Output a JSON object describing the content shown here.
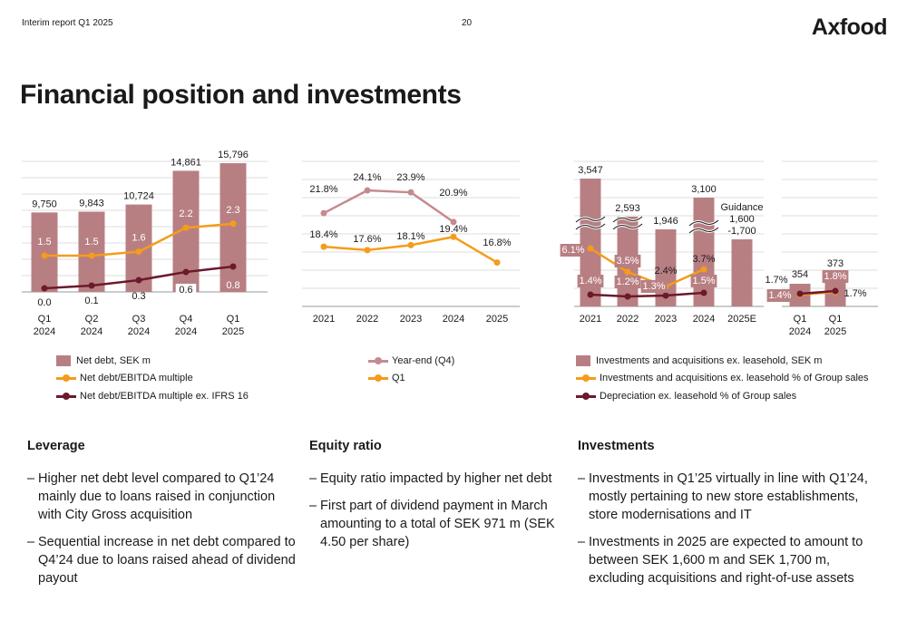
{
  "header": {
    "report": "Interim report Q1 2025",
    "page": "20",
    "logo": "Axfood"
  },
  "title": "Financial position and investments",
  "colors": {
    "bar": "#b87f83",
    "orange": "#f59c1a",
    "darkred": "#6b1a2b",
    "pink": "#c58a8f",
    "grid": "#dddddd"
  },
  "chart_data": [
    {
      "type": "bar",
      "categories": [
        [
          "Q1",
          "2024"
        ],
        [
          "Q2",
          "2024"
        ],
        [
          "Q3",
          "2024"
        ],
        [
          "Q4",
          "2024"
        ],
        [
          "Q1",
          "2025"
        ]
      ],
      "series": [
        {
          "name": "Net debt, SEK m",
          "values": [
            9750,
            9843,
            10724,
            14861,
            15796
          ],
          "labels": [
            "9,750",
            "9,843",
            "10,724",
            "14,861",
            "15,796"
          ]
        },
        {
          "name": "Net debt/EBITDA multiple",
          "values": [
            1.5,
            1.5,
            1.6,
            2.2,
            2.3
          ],
          "labels": [
            "1.5",
            "1.5",
            "1.6",
            "2.2",
            "2.3"
          ]
        },
        {
          "name": "Net debt/EBITDA multiple ex. IFRS 16",
          "values": [
            0.0,
            0.1,
            0.3,
            0.6,
            0.8
          ],
          "labels": [
            "0.0",
            "0.1",
            "0.3",
            "0.6",
            "0.8"
          ]
        }
      ],
      "legend_position": "bottom"
    },
    {
      "type": "line",
      "categories": [
        "2021",
        "2022",
        "2023",
        "2024",
        "2025"
      ],
      "series": [
        {
          "name": "Year-end (Q4)",
          "values": [
            21.8,
            24.1,
            23.9,
            20.9,
            null
          ],
          "labels": [
            "21.8%",
            "24.1%",
            "23.9%",
            "20.9%",
            ""
          ]
        },
        {
          "name": "Q1",
          "values": [
            18.4,
            17.6,
            18.1,
            19.4,
            16.8
          ],
          "labels": [
            "18.4%",
            "17.6%",
            "18.1%",
            "19.4%",
            "16.8%"
          ]
        }
      ],
      "legend_position": "bottom"
    },
    {
      "type": "bar",
      "categories": [
        [
          "2021"
        ],
        [
          "2022"
        ],
        [
          "2023"
        ],
        [
          "2024"
        ],
        [
          "2025E"
        ]
      ],
      "series": [
        {
          "name": "Investments and acquisitions ex. leasehold, SEK m",
          "values": [
            3547,
            2593,
            1946,
            3100,
            1650
          ],
          "labels": [
            "3,547",
            "2,593",
            "1,946",
            "3,100",
            ""
          ]
        },
        {
          "name": "Investments and acquisitions ex. leasehold % of Group sales",
          "values": [
            6.1,
            3.5,
            1.3,
            3.7,
            null
          ],
          "labels": [
            "6.1%",
            "3.5%",
            "1.3%",
            "3.7%",
            ""
          ]
        },
        {
          "name": "Depreciation ex. leasehold % of Group sales",
          "values": [
            1.4,
            1.2,
            2.4,
            1.5,
            null
          ],
          "labels": [
            "1.4%",
            "1.2%",
            "2.4%",
            "1.5%",
            ""
          ]
        }
      ],
      "guidance_label": [
        "Guidance",
        "1,600",
        "-1,700"
      ],
      "axis_break": true,
      "legend_position": "bottom"
    },
    {
      "type": "bar",
      "categories": [
        [
          "Q1",
          "2024"
        ],
        [
          "Q1",
          "2025"
        ]
      ],
      "series": [
        {
          "name": "Investments and acquisitions ex. leasehold, SEK m",
          "values": [
            354,
            373
          ],
          "labels": [
            "354",
            "373"
          ]
        },
        {
          "name": "Investments and acquisitions ex. leasehold % of Group sales",
          "values": [
            1.4,
            1.8
          ],
          "labels": [
            "1.4%",
            "1.8%"
          ]
        },
        {
          "name": "Depreciation ex. leasehold % of Group sales",
          "values": [
            1.7,
            1.7
          ],
          "labels": [
            "1.7%",
            "1.7%"
          ]
        }
      ]
    }
  ],
  "legends": {
    "leverage": [
      "Net debt, SEK m",
      "Net debt/EBITDA multiple",
      "Net debt/EBITDA multiple ex. IFRS 16"
    ],
    "equity": [
      "Year-end (Q4)",
      "Q1"
    ],
    "investments": [
      "Investments and acquisitions ex. leasehold, SEK m",
      "Investments and acquisitions ex. leasehold % of Group sales",
      "Depreciation ex. leasehold % of Group sales"
    ]
  },
  "sections": [
    {
      "heading": "Leverage",
      "bullets": [
        "Higher net debt level compared to Q1’24 mainly due to loans raised in conjunction with City Gross acquisition",
        "Sequential increase in net debt compared to Q4’24 due to loans raised ahead of dividend payout"
      ]
    },
    {
      "heading": "Equity ratio",
      "bullets": [
        "Equity ratio impacted by higher net debt",
        "First part of dividend payment in March amounting to a total of SEK 971 m (SEK 4.50 per share)"
      ]
    },
    {
      "heading": "Investments",
      "bullets": [
        "Investments in Q1’25 virtually in line with Q1’24, mostly pertaining to new store establishments, store modernisations and IT",
        "Investments in 2025 are expected to amount to between SEK 1,600 m and SEK 1,700 m, excluding acquisitions and right-of-use assets"
      ]
    }
  ]
}
